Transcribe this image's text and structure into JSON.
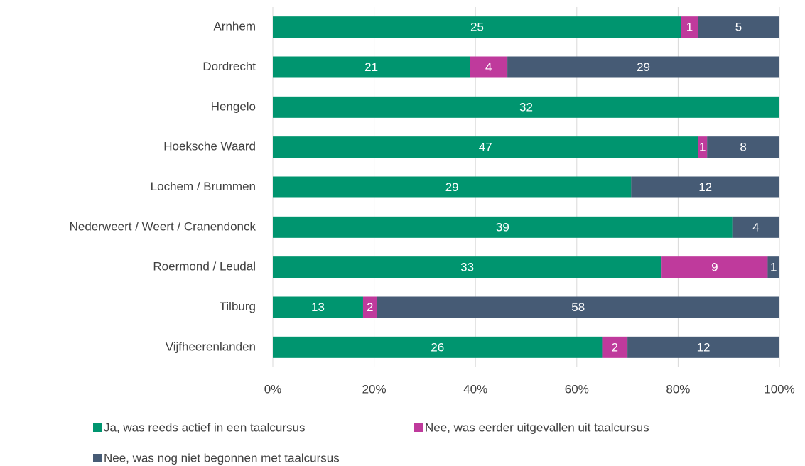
{
  "chart_data": {
    "type": "bar",
    "orientation": "horizontal",
    "stacking": "percent",
    "categories": [
      "Arnhem",
      "Dordrecht",
      "Hengelo",
      "Hoeksche Waard",
      "Lochem / Brummen",
      "Nederweert / Weert / Cranendonck",
      "Roermond / Leudal",
      "Tilburg",
      "Vijfheerenlanden"
    ],
    "series": [
      {
        "name": "Ja, was reeds actief in een taalcursus",
        "color": "#00956f",
        "values": [
          25,
          21,
          32,
          47,
          29,
          39,
          33,
          13,
          26
        ]
      },
      {
        "name": "Nee, was eerder uitgevallen uit taalcursus",
        "color": "#bf3a9c",
        "values": [
          1,
          4,
          null,
          1,
          null,
          null,
          9,
          2,
          2
        ]
      },
      {
        "name": "Nee, was nog niet begonnen met taalcursus",
        "color": "#465b75",
        "values": [
          5,
          29,
          null,
          8,
          12,
          4,
          1,
          58,
          12
        ]
      }
    ],
    "xlim": [
      0,
      100
    ],
    "xticks": [
      {
        "value": 0,
        "label": "0%"
      },
      {
        "value": 20,
        "label": "20%"
      },
      {
        "value": 40,
        "label": "40%"
      },
      {
        "value": 60,
        "label": "60%"
      },
      {
        "value": 80,
        "label": "80%"
      },
      {
        "value": 100,
        "label": "100%"
      }
    ],
    "grid": true,
    "legend": "bottom"
  }
}
